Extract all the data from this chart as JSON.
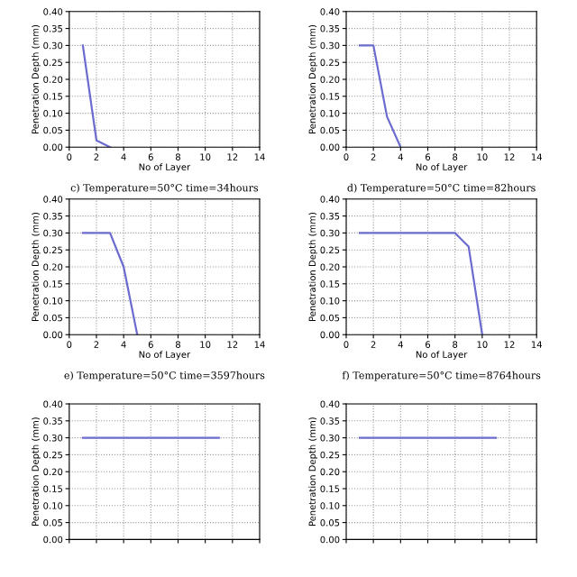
{
  "chart_data": [
    {
      "type": "line",
      "xlabel": "No of Layer",
      "ylabel": "Penetration Depth (mm)",
      "x": [
        1,
        2,
        3
      ],
      "series": [
        {
          "color": "#6b6bd0",
          "values": [
            0.3,
            0.02,
            0.0
          ]
        }
      ],
      "xlim": [
        0,
        14
      ],
      "xticks": [
        0,
        2,
        4,
        6,
        8,
        10,
        12,
        14
      ],
      "ylim": [
        0,
        0.4
      ],
      "yticks": [
        {
          "value": 0,
          "label": "0.00"
        },
        0.05,
        {
          "value": 0.1,
          "label": "0.10"
        },
        0.15,
        {
          "value": 0.2,
          "label": "0.20"
        },
        0.25,
        {
          "value": 0.3,
          "label": "0.30"
        },
        0.35,
        {
          "value": 0.4,
          "label": "0.40"
        }
      ],
      "grid": true,
      "annotations": [
        "c) Temperature=50°C time=34hours"
      ]
    },
    {
      "type": "line",
      "xlabel": "No of Layer",
      "ylabel": "Penetration Depth (mm)",
      "x": [
        1,
        2,
        3,
        4
      ],
      "series": [
        {
          "color": "#6b6bd0",
          "values": [
            0.3,
            0.3,
            0.09,
            0.0
          ]
        }
      ],
      "xlim": [
        0,
        14
      ],
      "xticks": [
        0,
        2,
        4,
        6,
        8,
        10,
        12,
        14
      ],
      "ylim": [
        0,
        0.4
      ],
      "yticks": [
        {
          "value": 0,
          "label": "0.00"
        },
        0.05,
        {
          "value": 0.1,
          "label": "0.10"
        },
        0.15,
        {
          "value": 0.2,
          "label": "0.20"
        },
        0.25,
        {
          "value": 0.3,
          "label": "0.30"
        },
        0.35,
        {
          "value": 0.4,
          "label": "0.40"
        }
      ],
      "grid": true,
      "annotations": [
        "d) Temperature=50°C time=82hours"
      ]
    },
    {
      "type": "line",
      "xlabel": "No of Layer",
      "ylabel": "Penetration Depth (mm)",
      "x": [
        1,
        3,
        4,
        5
      ],
      "series": [
        {
          "color": "#6b6bd0",
          "values": [
            0.3,
            0.3,
            0.2,
            0.0
          ]
        }
      ],
      "xlim": [
        0,
        14
      ],
      "xticks": [
        0,
        2,
        4,
        6,
        8,
        10,
        12,
        14
      ],
      "ylim": [
        0,
        0.4
      ],
      "yticks": [
        {
          "value": 0,
          "label": "0.00"
        },
        0.05,
        {
          "value": 0.1,
          "label": "0.10"
        },
        0.15,
        {
          "value": 0.2,
          "label": "0.20"
        },
        0.25,
        {
          "value": 0.3,
          "label": "0.30"
        },
        0.35,
        {
          "value": 0.4,
          "label": "0.40"
        }
      ],
      "grid": true,
      "annotations": [
        "e) Temperature=50°C time=3597hours"
      ]
    },
    {
      "type": "line",
      "xlabel": "No of Layer",
      "ylabel": "Penetration Depth (mm)",
      "x": [
        1,
        8,
        9,
        10
      ],
      "series": [
        {
          "color": "#6b6bd0",
          "values": [
            0.3,
            0.3,
            0.26,
            0.0
          ]
        }
      ],
      "xlim": [
        0,
        14
      ],
      "xticks": [
        0,
        2,
        4,
        6,
        8,
        10,
        12,
        14
      ],
      "ylim": [
        0,
        0.4
      ],
      "yticks": [
        {
          "value": 0,
          "label": "0.00"
        },
        0.05,
        {
          "value": 0.1,
          "label": "0.10"
        },
        0.15,
        {
          "value": 0.2,
          "label": "0.20"
        },
        0.25,
        {
          "value": 0.3,
          "label": "0.30"
        },
        0.35,
        {
          "value": 0.4,
          "label": "0.40"
        }
      ],
      "grid": true,
      "annotations": [
        "f) Temperature=50°C time=8764hours"
      ]
    },
    {
      "type": "line",
      "ylabel": "Penetration Depth (mm)",
      "x": [
        1,
        11
      ],
      "series": [
        {
          "color": "#6b6bd0",
          "values": [
            0.3,
            0.3
          ]
        }
      ],
      "xlim": [
        0,
        14
      ],
      "xticks": [
        0,
        2,
        4,
        6,
        8,
        10,
        12,
        14
      ],
      "ylim": [
        0,
        0.4
      ],
      "yticks": [
        {
          "value": 0,
          "label": "0.00"
        },
        0.05,
        {
          "value": 0.1,
          "label": "0.10"
        },
        0.15,
        {
          "value": 0.2,
          "label": "0.20"
        },
        0.25,
        {
          "value": 0.3,
          "label": "0.30"
        },
        0.35,
        {
          "value": 0.4,
          "label": "0.40"
        }
      ],
      "grid": true,
      "tick_labels": "y"
    },
    {
      "type": "line",
      "ylabel": "Penetration Depth (mm)",
      "x": [
        1,
        11
      ],
      "series": [
        {
          "color": "#6b6bd0",
          "values": [
            0.3,
            0.3
          ]
        }
      ],
      "xlim": [
        0,
        14
      ],
      "xticks": [
        0,
        2,
        4,
        6,
        8,
        10,
        12,
        14
      ],
      "ylim": [
        0,
        0.4
      ],
      "yticks": [
        {
          "value": 0,
          "label": "0.00"
        },
        0.05,
        {
          "value": 0.1,
          "label": "0.10"
        },
        0.15,
        {
          "value": 0.2,
          "label": "0.20"
        },
        0.25,
        {
          "value": 0.3,
          "label": "0.30"
        },
        0.35,
        {
          "value": 0.4,
          "label": "0.40"
        }
      ],
      "grid": true,
      "tick_labels": "y"
    }
  ]
}
